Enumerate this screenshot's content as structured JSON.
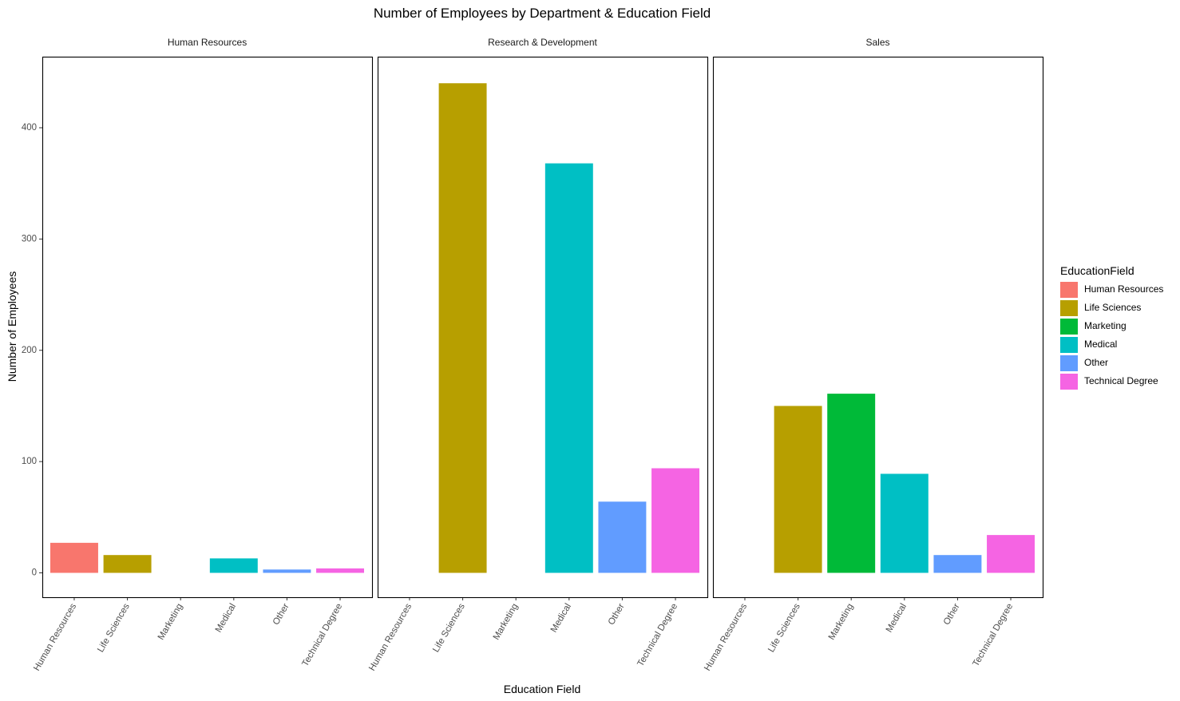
{
  "chart_data": {
    "type": "bar",
    "title": "Number of Employees by Department & Education Field",
    "xlabel": "Education Field",
    "ylabel": "Number of Employees",
    "ylim": [
      -20,
      460
    ],
    "yticks": [
      0,
      100,
      200,
      300,
      400
    ],
    "categories": [
      "Human Resources",
      "Life Sciences",
      "Marketing",
      "Medical",
      "Other",
      "Technical Degree"
    ],
    "grid": false,
    "legend": {
      "title": "EducationField",
      "position": "right",
      "entries": [
        {
          "label": "Human Resources",
          "color": "#F8766D"
        },
        {
          "label": "Life Sciences",
          "color": "#B79F00"
        },
        {
          "label": "Marketing",
          "color": "#00BA38"
        },
        {
          "label": "Medical",
          "color": "#00BFC4"
        },
        {
          "label": "Other",
          "color": "#619CFF"
        },
        {
          "label": "Technical Degree",
          "color": "#F564E3"
        }
      ]
    },
    "facets": [
      {
        "name": "Human Resources",
        "values": [
          27,
          16,
          0,
          13,
          3,
          4
        ]
      },
      {
        "name": "Research & Development",
        "values": [
          0,
          440,
          0,
          368,
          64,
          94
        ]
      },
      {
        "name": "Sales",
        "values": [
          0,
          150,
          161,
          89,
          16,
          34
        ]
      }
    ]
  }
}
